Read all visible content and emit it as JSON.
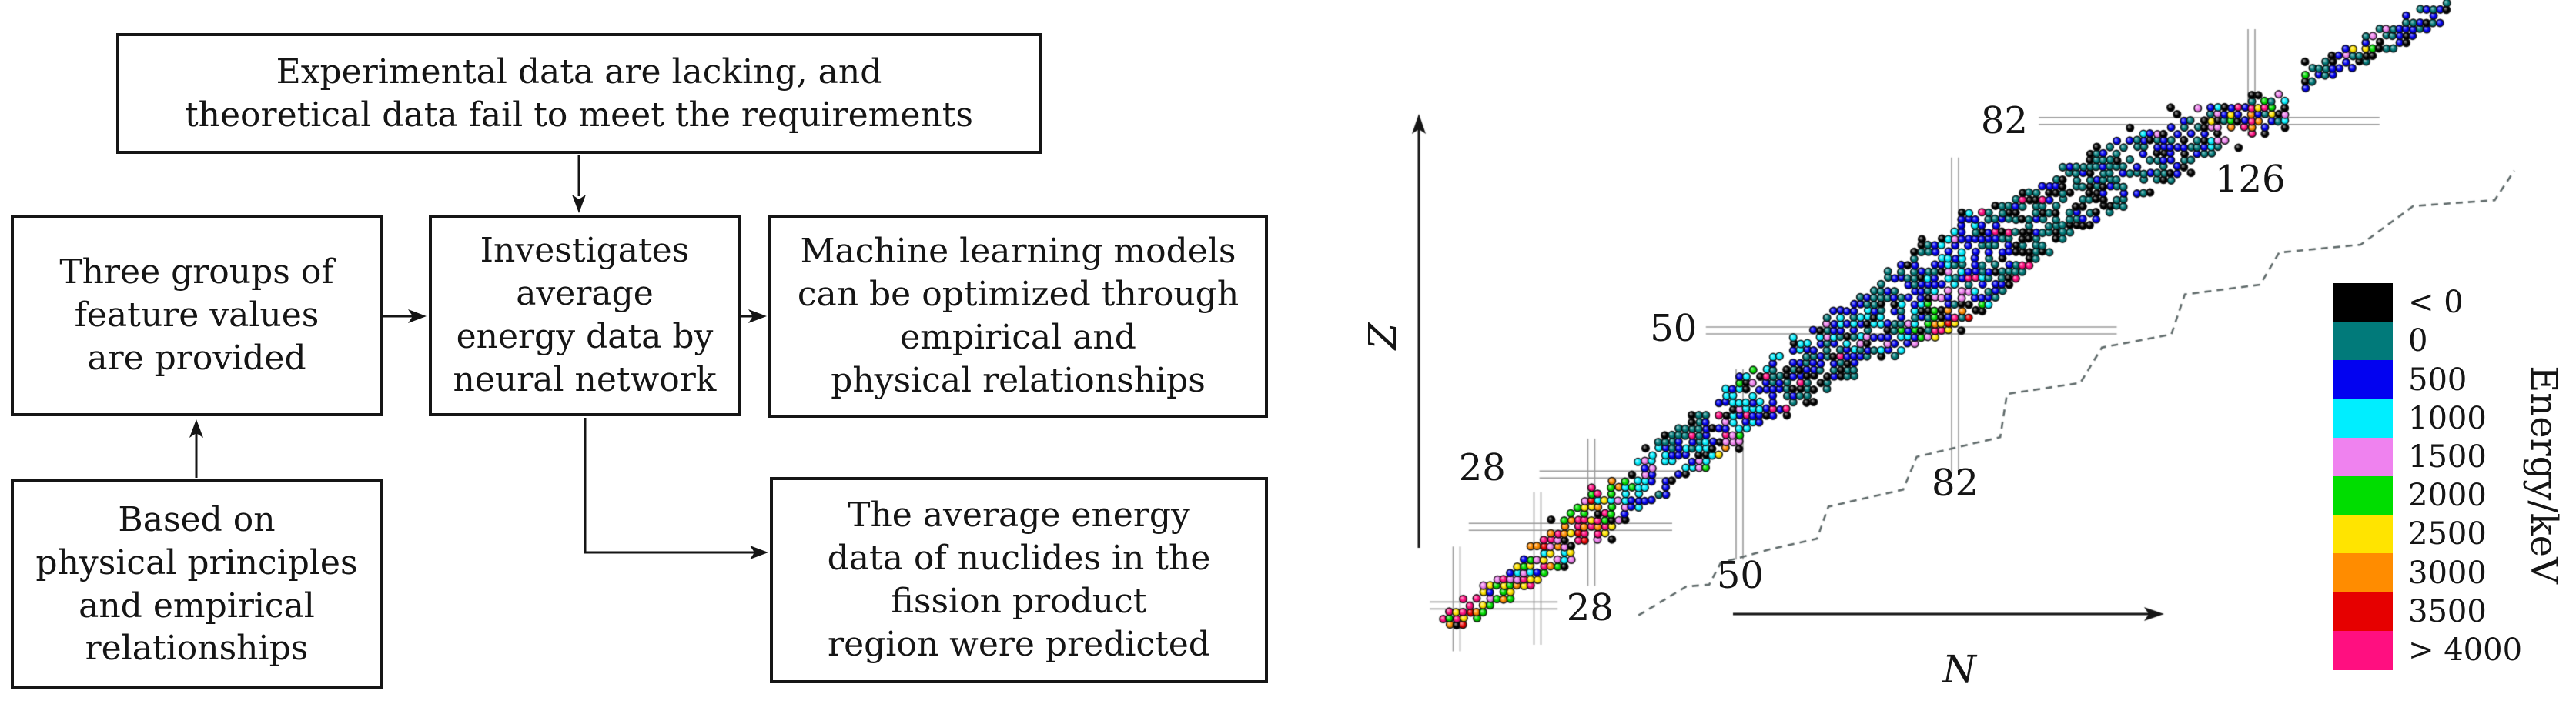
{
  "flowchart": {
    "boxes": [
      {
        "id": "problem",
        "text": "Experimental data are lacking, and\ntheoretical data fail to meet the requirements"
      },
      {
        "id": "features",
        "text": "Three groups of\nfeature values\nare provided"
      },
      {
        "id": "method",
        "text": "Investigates\naverage\nenergy data by\nneural network"
      },
      {
        "id": "optimized",
        "text": "Machine learning models\ncan be optimized through\nempirical and\nphysical relationships"
      },
      {
        "id": "basis",
        "text": "Based on\nphysical principles\nand empirical\nrelationships"
      },
      {
        "id": "prediction",
        "text": "The average energy\ndata of nuclides in the\nfission product\nregion were predicted"
      }
    ]
  },
  "chart_data": {
    "type": "scatter",
    "xlabel": "N",
    "ylabel": "Z",
    "colorbar_label": "Energy/keV",
    "legend_bins": [
      {
        "label": "< 0",
        "color": "#000000"
      },
      {
        "label": "0",
        "color": "#017a7a"
      },
      {
        "label": "500",
        "color": "#0202f0"
      },
      {
        "label": "1000",
        "color": "#00eeff"
      },
      {
        "label": "1500",
        "color": "#ef82ef"
      },
      {
        "label": "2000",
        "color": "#00dd00"
      },
      {
        "label": "2500",
        "color": "#ffe400"
      },
      {
        "label": "3000",
        "color": "#ff8c00"
      },
      {
        "label": "3500",
        "color": "#e60000"
      },
      {
        "label": "> 4000",
        "color": "#ff0f80"
      }
    ],
    "bin_thresholds": [
      0,
      500,
      1000,
      1500,
      2000,
      2500,
      3000,
      3500,
      4000
    ],
    "magic_lines_N": [
      {
        "value": 8,
        "z_span": [
          1,
          17
        ],
        "label": ""
      },
      {
        "value": 20,
        "z_span": [
          2,
          25.3
        ],
        "label": ""
      },
      {
        "value": 28,
        "z_span": [
          11,
          33.5
        ],
        "label": "28",
        "label_at": [
          27.8,
          7.6
        ]
      },
      {
        "value": 50,
        "z_span": [
          15,
          44.1
        ],
        "label": "50",
        "label_at": [
          50.1,
          12.6
        ]
      },
      {
        "value": 82,
        "z_span": [
          28.2,
          76.4
        ],
        "label": "82",
        "label_at": [
          82,
          26.7
        ]
      },
      {
        "value": 126,
        "z_span": [
          79.7,
          96
        ],
        "label": "126",
        "label_at": [
          125.8,
          73.1
        ]
      }
    ],
    "magic_lines_Z": [
      {
        "value": 8,
        "n_span": [
          4,
          23
        ],
        "label": ""
      },
      {
        "value": 20,
        "n_span": [
          9.8,
          40
        ],
        "label": ""
      },
      {
        "value": 28,
        "n_span": [
          20.3,
          41
        ],
        "label": "28",
        "label_at": [
          11.8,
          29.0
        ]
      },
      {
        "value": 50,
        "n_span": [
          45,
          106
        ],
        "label": "50",
        "label_at": [
          40.2,
          50.3
        ]
      },
      {
        "value": 82,
        "n_span": [
          94.4,
          145
        ],
        "label": "82",
        "label_at": [
          89.3,
          82
        ]
      }
    ],
    "band": [
      [
        6,
        5.5,
        1.5
      ],
      [
        12,
        8.5,
        2.5
      ],
      [
        20,
        14.5,
        3.5
      ],
      [
        28,
        21.5,
        4.5
      ],
      [
        36,
        27,
        4.5
      ],
      [
        44,
        32.5,
        5
      ],
      [
        50,
        38.5,
        5.5
      ],
      [
        58,
        43.5,
        5.5
      ],
      [
        66,
        48.5,
        6
      ],
      [
        74,
        53.5,
        7
      ],
      [
        82,
        58.5,
        9
      ],
      [
        90,
        63.5,
        7
      ],
      [
        98,
        69,
        6
      ],
      [
        106,
        73.5,
        5.5
      ],
      [
        114,
        78,
        5
      ],
      [
        120,
        80.5,
        4
      ],
      [
        126,
        82.5,
        3.2
      ],
      [
        131,
        83.5,
        2.6
      ]
    ],
    "island": [
      [
        134,
        88,
        2.2
      ],
      [
        140,
        91.5,
        2.4
      ],
      [
        146,
        94.5,
        2.4
      ],
      [
        151,
        97,
        2
      ],
      [
        155,
        99,
        1.8
      ]
    ],
    "drip_line": [
      [
        35,
        6.5
      ],
      [
        42.1,
        10.9
      ],
      [
        45.5,
        11.2
      ],
      [
        47.2,
        14.5
      ],
      [
        54.6,
        16.6
      ],
      [
        61.5,
        18.2
      ],
      [
        63.2,
        23.1
      ],
      [
        74.3,
        25.7
      ],
      [
        76.3,
        30.7
      ],
      [
        88.7,
        33.7
      ],
      [
        89.7,
        40.3
      ],
      [
        100.6,
        42
      ],
      [
        103.8,
        47.4
      ],
      [
        114.1,
        49.4
      ],
      [
        116.1,
        55.5
      ],
      [
        127.3,
        57
      ],
      [
        130.1,
        61.9
      ],
      [
        142.2,
        63.1
      ],
      [
        150,
        69
      ],
      [
        162.1,
        69.9
      ],
      [
        165,
        74.4
      ]
    ],
    "seed": 42,
    "fill_probability": 0.74
  }
}
